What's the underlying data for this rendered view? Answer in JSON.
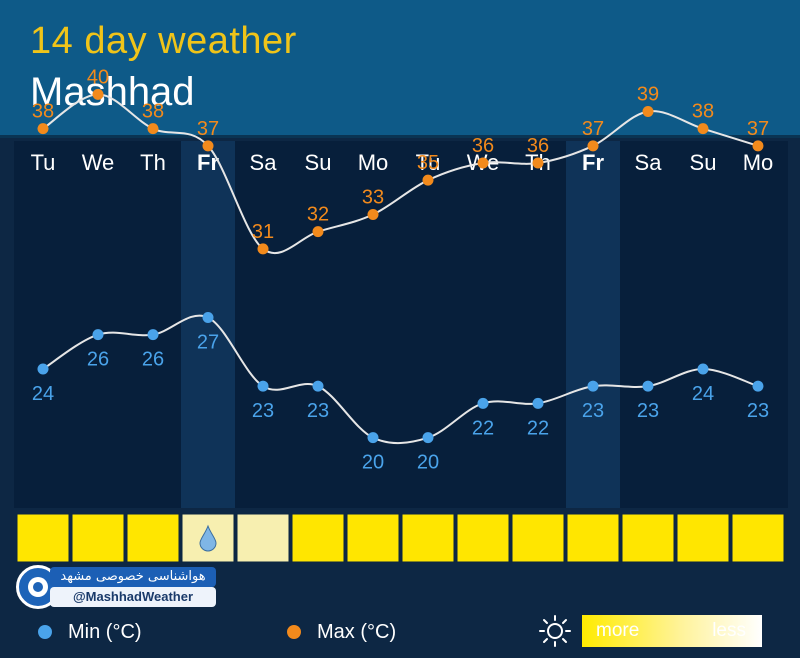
{
  "header": {
    "title": "14 day weather",
    "city": "Mashhad"
  },
  "chart_data": {
    "type": "line",
    "x": [
      "Tu",
      "We",
      "Th",
      "Fr",
      "Sa",
      "Su",
      "Mo",
      "Tu",
      "We",
      "Th",
      "Fr",
      "Sa",
      "Su",
      "Mo"
    ],
    "highlighted_days": [
      3,
      10
    ],
    "series": [
      {
        "name": "Max (°C)",
        "color": "#f28a1c",
        "values": [
          38,
          40,
          38,
          37,
          31,
          32,
          33,
          35,
          36,
          36,
          37,
          39,
          38,
          37
        ]
      },
      {
        "name": "Min (°C)",
        "color": "#4aa3ea",
        "values": [
          24,
          26,
          26,
          27,
          23,
          23,
          20,
          20,
          22,
          22,
          23,
          23,
          24,
          23
        ]
      }
    ],
    "sunshine": {
      "levels": [
        "more",
        "more",
        "more",
        "less",
        "mid",
        "more",
        "more",
        "more",
        "more",
        "more",
        "more",
        "more",
        "more",
        "more"
      ],
      "icons": [
        "",
        "",
        "",
        "rain-drop-icon",
        "",
        "",
        "",
        "",
        "",
        "",
        "",
        "",
        "",
        ""
      ]
    },
    "ylim": [
      18,
      42
    ],
    "grid": false,
    "legend": "bottom"
  },
  "logo": {
    "top_text": "هواشناسی خصوصی مشهد",
    "handle": "@MashhadWeather"
  },
  "legend": {
    "min_label": "Min (°C)",
    "max_label": "Max (°C)",
    "more_label": "more",
    "less_label": "less"
  },
  "colors": {
    "max": "#f28a1c",
    "min": "#4aa3ea",
    "sun_more": "#ffe600",
    "sun_less": "#f7efb0",
    "sun_mid": "#f7efb0",
    "highlight": "#0f3358"
  }
}
